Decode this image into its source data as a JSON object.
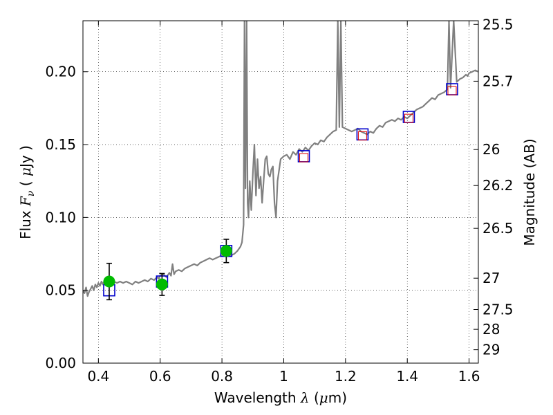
{
  "chart_data": {
    "type": "line",
    "xlabel": "Wavelength",
    "xlabel_symbol": "λ",
    "xlabel_unit_open": " (",
    "xlabel_unit_mu": "μ",
    "xlabel_unit_rest": "m)",
    "ylabel": "Flux",
    "ylabel_symbol": "F",
    "ylabel_subscript": "ν",
    "ylabel_unit_open": "( ",
    "ylabel_unit_mu": "μ",
    "ylabel_unit_rest": "Jy )",
    "y2label": "Magnitude (AB)",
    "xlim": [
      0.35,
      1.63
    ],
    "ylim": [
      0.0,
      0.235
    ],
    "grid": true,
    "x_ticks": [
      {
        "value": 0.4,
        "label": "0.4"
      },
      {
        "value": 0.6,
        "label": "0.6"
      },
      {
        "value": 0.8,
        "label": "0.8"
      },
      {
        "value": 1.0,
        "label": "1"
      },
      {
        "value": 1.2,
        "label": "1.2"
      },
      {
        "value": 1.4,
        "label": "1.4"
      },
      {
        "value": 1.6,
        "label": "1.6"
      }
    ],
    "y_ticks": [
      {
        "value": 0.0,
        "label": "0.00"
      },
      {
        "value": 0.05,
        "label": "0.05"
      },
      {
        "value": 0.1,
        "label": "0.10"
      },
      {
        "value": 0.15,
        "label": "0.15"
      },
      {
        "value": 0.2,
        "label": "0.20"
      }
    ],
    "y2_ticks": [
      {
        "flux": 0.2325,
        "label": "25.5"
      },
      {
        "flux": 0.1935,
        "label": "25.7"
      },
      {
        "flux": 0.1466,
        "label": "26"
      },
      {
        "flux": 0.1219,
        "label": "26.2"
      },
      {
        "flux": 0.0925,
        "label": "26.5"
      },
      {
        "flux": 0.0583,
        "label": "27"
      },
      {
        "flux": 0.0368,
        "label": "27.5"
      },
      {
        "flux": 0.0232,
        "label": "28"
      },
      {
        "flux": 0.0092,
        "label": "29"
      }
    ],
    "series": [
      {
        "name": "model-sed",
        "style": "line",
        "color": "#808080",
        "points": [
          [
            0.35,
            0.05
          ],
          [
            0.355,
            0.048
          ],
          [
            0.36,
            0.052
          ],
          [
            0.365,
            0.046
          ],
          [
            0.37,
            0.049
          ],
          [
            0.375,
            0.051
          ],
          [
            0.38,
            0.053
          ],
          [
            0.385,
            0.05
          ],
          [
            0.39,
            0.054
          ],
          [
            0.395,
            0.052
          ],
          [
            0.4,
            0.055
          ],
          [
            0.405,
            0.053
          ],
          [
            0.41,
            0.056
          ],
          [
            0.415,
            0.054
          ],
          [
            0.42,
            0.057
          ],
          [
            0.425,
            0.055
          ],
          [
            0.43,
            0.054
          ],
          [
            0.435,
            0.056
          ],
          [
            0.44,
            0.055
          ],
          [
            0.45,
            0.056
          ],
          [
            0.46,
            0.055
          ],
          [
            0.47,
            0.056
          ],
          [
            0.48,
            0.055
          ],
          [
            0.49,
            0.056
          ],
          [
            0.5,
            0.055
          ],
          [
            0.51,
            0.054
          ],
          [
            0.52,
            0.056
          ],
          [
            0.53,
            0.055
          ],
          [
            0.54,
            0.056
          ],
          [
            0.55,
            0.057
          ],
          [
            0.56,
            0.056
          ],
          [
            0.57,
            0.058
          ],
          [
            0.58,
            0.057
          ],
          [
            0.59,
            0.059
          ],
          [
            0.595,
            0.058
          ],
          [
            0.6,
            0.06
          ],
          [
            0.61,
            0.061
          ],
          [
            0.62,
            0.059
          ],
          [
            0.63,
            0.062
          ],
          [
            0.635,
            0.06
          ],
          [
            0.64,
            0.068
          ],
          [
            0.645,
            0.061
          ],
          [
            0.65,
            0.063
          ],
          [
            0.66,
            0.064
          ],
          [
            0.67,
            0.063
          ],
          [
            0.68,
            0.065
          ],
          [
            0.69,
            0.066
          ],
          [
            0.7,
            0.067
          ],
          [
            0.71,
            0.068
          ],
          [
            0.72,
            0.067
          ],
          [
            0.73,
            0.069
          ],
          [
            0.74,
            0.07
          ],
          [
            0.75,
            0.071
          ],
          [
            0.76,
            0.072
          ],
          [
            0.77,
            0.071
          ],
          [
            0.78,
            0.072
          ],
          [
            0.79,
            0.073
          ],
          [
            0.8,
            0.074
          ],
          [
            0.81,
            0.075
          ],
          [
            0.82,
            0.074
          ],
          [
            0.83,
            0.074
          ],
          [
            0.84,
            0.075
          ],
          [
            0.85,
            0.077
          ],
          [
            0.86,
            0.08
          ],
          [
            0.865,
            0.083
          ],
          [
            0.87,
            0.095
          ],
          [
            0.873,
            0.235
          ],
          [
            0.876,
            0.12
          ],
          [
            0.88,
            0.235
          ],
          [
            0.883,
            0.11
          ],
          [
            0.886,
            0.1
          ],
          [
            0.89,
            0.125
          ],
          [
            0.895,
            0.105
          ],
          [
            0.9,
            0.13
          ],
          [
            0.905,
            0.15
          ],
          [
            0.91,
            0.115
          ],
          [
            0.915,
            0.14
          ],
          [
            0.92,
            0.12
          ],
          [
            0.925,
            0.128
          ],
          [
            0.93,
            0.11
          ],
          [
            0.935,
            0.125
          ],
          [
            0.94,
            0.14
          ],
          [
            0.945,
            0.142
          ],
          [
            0.95,
            0.13
          ],
          [
            0.955,
            0.128
          ],
          [
            0.96,
            0.133
          ],
          [
            0.965,
            0.135
          ],
          [
            0.97,
            0.11
          ],
          [
            0.975,
            0.1
          ],
          [
            0.98,
            0.125
          ],
          [
            0.99,
            0.14
          ],
          [
            1.0,
            0.142
          ],
          [
            1.01,
            0.143
          ],
          [
            1.02,
            0.14
          ],
          [
            1.03,
            0.145
          ],
          [
            1.04,
            0.143
          ],
          [
            1.05,
            0.147
          ],
          [
            1.06,
            0.145
          ],
          [
            1.07,
            0.148
          ],
          [
            1.08,
            0.146
          ],
          [
            1.09,
            0.149
          ],
          [
            1.1,
            0.151
          ],
          [
            1.11,
            0.15
          ],
          [
            1.12,
            0.153
          ],
          [
            1.13,
            0.152
          ],
          [
            1.14,
            0.155
          ],
          [
            1.15,
            0.157
          ],
          [
            1.16,
            0.159
          ],
          [
            1.17,
            0.16
          ],
          [
            1.175,
            0.235
          ],
          [
            1.18,
            0.162
          ],
          [
            1.185,
            0.235
          ],
          [
            1.19,
            0.162
          ],
          [
            1.2,
            0.161
          ],
          [
            1.21,
            0.16
          ],
          [
            1.22,
            0.159
          ],
          [
            1.23,
            0.16
          ],
          [
            1.24,
            0.161
          ],
          [
            1.25,
            0.159
          ],
          [
            1.26,
            0.158
          ],
          [
            1.27,
            0.157
          ],
          [
            1.28,
            0.159
          ],
          [
            1.29,
            0.158
          ],
          [
            1.3,
            0.161
          ],
          [
            1.31,
            0.163
          ],
          [
            1.32,
            0.162
          ],
          [
            1.33,
            0.165
          ],
          [
            1.34,
            0.166
          ],
          [
            1.35,
            0.167
          ],
          [
            1.36,
            0.166
          ],
          [
            1.37,
            0.168
          ],
          [
            1.38,
            0.167
          ],
          [
            1.39,
            0.169
          ],
          [
            1.4,
            0.168
          ],
          [
            1.41,
            0.17
          ],
          [
            1.42,
            0.172
          ],
          [
            1.43,
            0.174
          ],
          [
            1.44,
            0.175
          ],
          [
            1.45,
            0.176
          ],
          [
            1.46,
            0.178
          ],
          [
            1.47,
            0.18
          ],
          [
            1.48,
            0.182
          ],
          [
            1.49,
            0.181
          ],
          [
            1.5,
            0.184
          ],
          [
            1.51,
            0.185
          ],
          [
            1.52,
            0.186
          ],
          [
            1.53,
            0.188
          ],
          [
            1.535,
            0.235
          ],
          [
            1.54,
            0.189
          ],
          [
            1.55,
            0.235
          ],
          [
            1.56,
            0.193
          ],
          [
            1.57,
            0.195
          ],
          [
            1.58,
            0.196
          ],
          [
            1.59,
            0.198
          ],
          [
            1.595,
            0.197
          ],
          [
            1.6,
            0.199
          ],
          [
            1.61,
            0.2
          ],
          [
            1.62,
            0.201
          ],
          [
            1.63,
            0.2
          ]
        ]
      },
      {
        "name": "observed-photometry",
        "style": "marker-circle-errorbar",
        "color": "#00bb00",
        "points": [
          {
            "x": 0.435,
            "y": 0.056,
            "err": 0.0125
          },
          {
            "x": 0.606,
            "y": 0.054,
            "err": 0.0075
          },
          {
            "x": 0.814,
            "y": 0.077,
            "err": 0.008
          }
        ]
      },
      {
        "name": "model-photometry-blue",
        "style": "marker-open-square",
        "color": "#0000cc",
        "points": [
          {
            "x": 0.435,
            "y": 0.05
          },
          {
            "x": 0.606,
            "y": 0.056
          },
          {
            "x": 0.814,
            "y": 0.077
          },
          {
            "x": 1.065,
            "y": 0.142
          },
          {
            "x": 1.255,
            "y": 0.157
          },
          {
            "x": 1.405,
            "y": 0.169
          },
          {
            "x": 1.545,
            "y": 0.188
          }
        ]
      },
      {
        "name": "model-photometry-red",
        "style": "marker-small-square",
        "color": "#dd0000",
        "points": [
          {
            "x": 1.065,
            "y": 0.141
          },
          {
            "x": 1.255,
            "y": 0.156
          },
          {
            "x": 1.405,
            "y": 0.168
          },
          {
            "x": 1.545,
            "y": 0.187
          }
        ]
      }
    ]
  }
}
